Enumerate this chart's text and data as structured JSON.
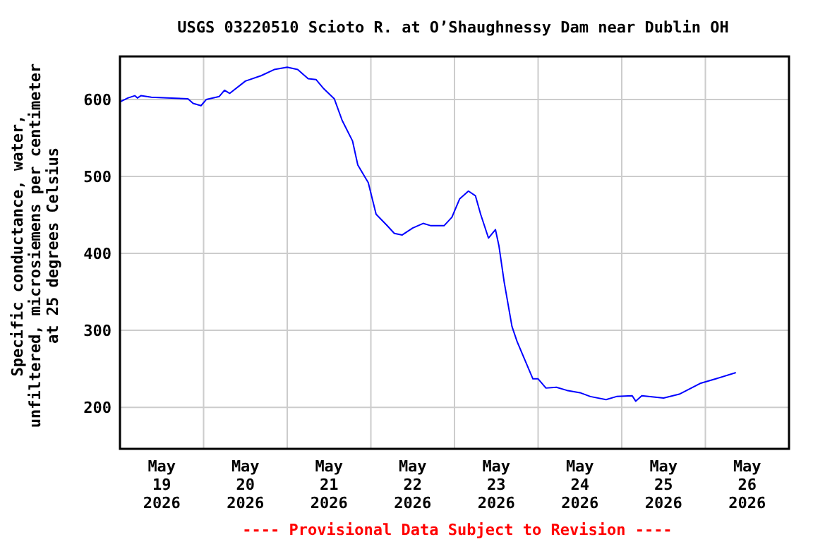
{
  "chart_data": {
    "type": "line",
    "title": "USGS 03220510 Scioto R. at O’Shaughnessy Dam near Dublin OH",
    "ylabel": "Specific conductance, water,\nunfiltered, microsiemens per centimeter\nat 25 degrees Celsius",
    "annotations": [
      "---- Provisional Data Subject to Revision ----"
    ],
    "x": [
      "2026-05-19T00:00",
      "2026-05-19T02:15",
      "2026-05-19T04:15",
      "2026-05-19T05:00",
      "2026-05-19T06:00",
      "2026-05-19T09:00",
      "2026-05-19T13:30",
      "2026-05-19T19:30",
      "2026-05-19T21:00",
      "2026-05-19T23:15",
      "2026-05-20T00:45",
      "2026-05-20T04:30",
      "2026-05-20T06:00",
      "2026-05-20T07:30",
      "2026-05-20T12:00",
      "2026-05-20T16:30",
      "2026-05-20T20:15",
      "2026-05-21T00:00",
      "2026-05-21T03:00",
      "2026-05-21T06:00",
      "2026-05-21T08:15",
      "2026-05-21T10:30",
      "2026-05-21T13:30",
      "2026-05-21T15:45",
      "2026-05-21T18:45",
      "2026-05-21T20:15",
      "2026-05-21T23:15",
      "2026-05-22T01:30",
      "2026-05-22T04:30",
      "2026-05-22T06:45",
      "2026-05-22T09:00",
      "2026-05-22T12:00",
      "2026-05-22T15:00",
      "2026-05-22T17:15",
      "2026-05-22T21:00",
      "2026-05-22T23:15",
      "2026-05-23T01:30",
      "2026-05-23T04:00",
      "2026-05-23T06:00",
      "2026-05-23T07:30",
      "2026-05-23T09:45",
      "2026-05-23T11:45",
      "2026-05-23T12:45",
      "2026-05-23T14:15",
      "2026-05-23T16:30",
      "2026-05-23T18:00",
      "2026-05-23T20:15",
      "2026-05-23T22:30",
      "2026-05-24T00:00",
      "2026-05-24T02:15",
      "2026-05-24T05:15",
      "2026-05-24T08:15",
      "2026-05-24T12:00",
      "2026-05-24T15:00",
      "2026-05-24T19:30",
      "2026-05-24T22:30",
      "2026-05-25T03:00",
      "2026-05-25T04:00",
      "2026-05-25T05:45",
      "2026-05-25T12:00",
      "2026-05-25T16:30",
      "2026-05-25T22:30",
      "2026-05-26T03:00",
      "2026-05-26T08:45"
    ],
    "series": [
      {
        "color": "#0000ff",
        "values": [
          597,
          602,
          605,
          602,
          605,
          603,
          602,
          601,
          595,
          592,
          600,
          604,
          612,
          608,
          624,
          631,
          639,
          642,
          639,
          627,
          626,
          614,
          601,
          573,
          546,
          515,
          492,
          451,
          437,
          426,
          424,
          433,
          439,
          436,
          436,
          447,
          471,
          481,
          475,
          451,
          420,
          431,
          410,
          363,
          305,
          285,
          261,
          237,
          237,
          225,
          226,
          222,
          219,
          214,
          210,
          214,
          215,
          208,
          215,
          212,
          217,
          231,
          237,
          245
        ]
      }
    ],
    "xlim": [
      "2026-05-19",
      "2026-05-27"
    ],
    "xticks": [
      {
        "value": "2026-05-19T12:00",
        "label": "May 19 2026"
      },
      {
        "value": "2026-05-20",
        "label": null
      },
      {
        "value": "2026-05-20T12:00",
        "label": "May 20 2026"
      },
      {
        "value": "2026-05-21",
        "label": null
      },
      {
        "value": "2026-05-21T12:00",
        "label": "May 21 2026"
      },
      {
        "value": "2026-05-22",
        "label": null
      },
      {
        "value": "2026-05-22T12:00",
        "label": "May 22 2026"
      },
      {
        "value": "2026-05-23",
        "label": null
      },
      {
        "value": "2026-05-23T12:00",
        "label": "May 23 2026"
      },
      {
        "value": "2026-05-24",
        "label": null
      },
      {
        "value": "2026-05-24T12:00",
        "label": "May 24 2026"
      },
      {
        "value": "2026-05-25",
        "label": null
      },
      {
        "value": "2026-05-25T12:00",
        "label": "May 25 2026"
      },
      {
        "value": "2026-05-26",
        "label": null
      },
      {
        "value": "2026-05-26T12:00",
        "label": "May 26 2026"
      }
    ],
    "ylim": [
      146,
      656
    ],
    "yticks": [
      200,
      300,
      400,
      500,
      600
    ],
    "grid": true,
    "marker": "none",
    "line_style": "solid"
  }
}
